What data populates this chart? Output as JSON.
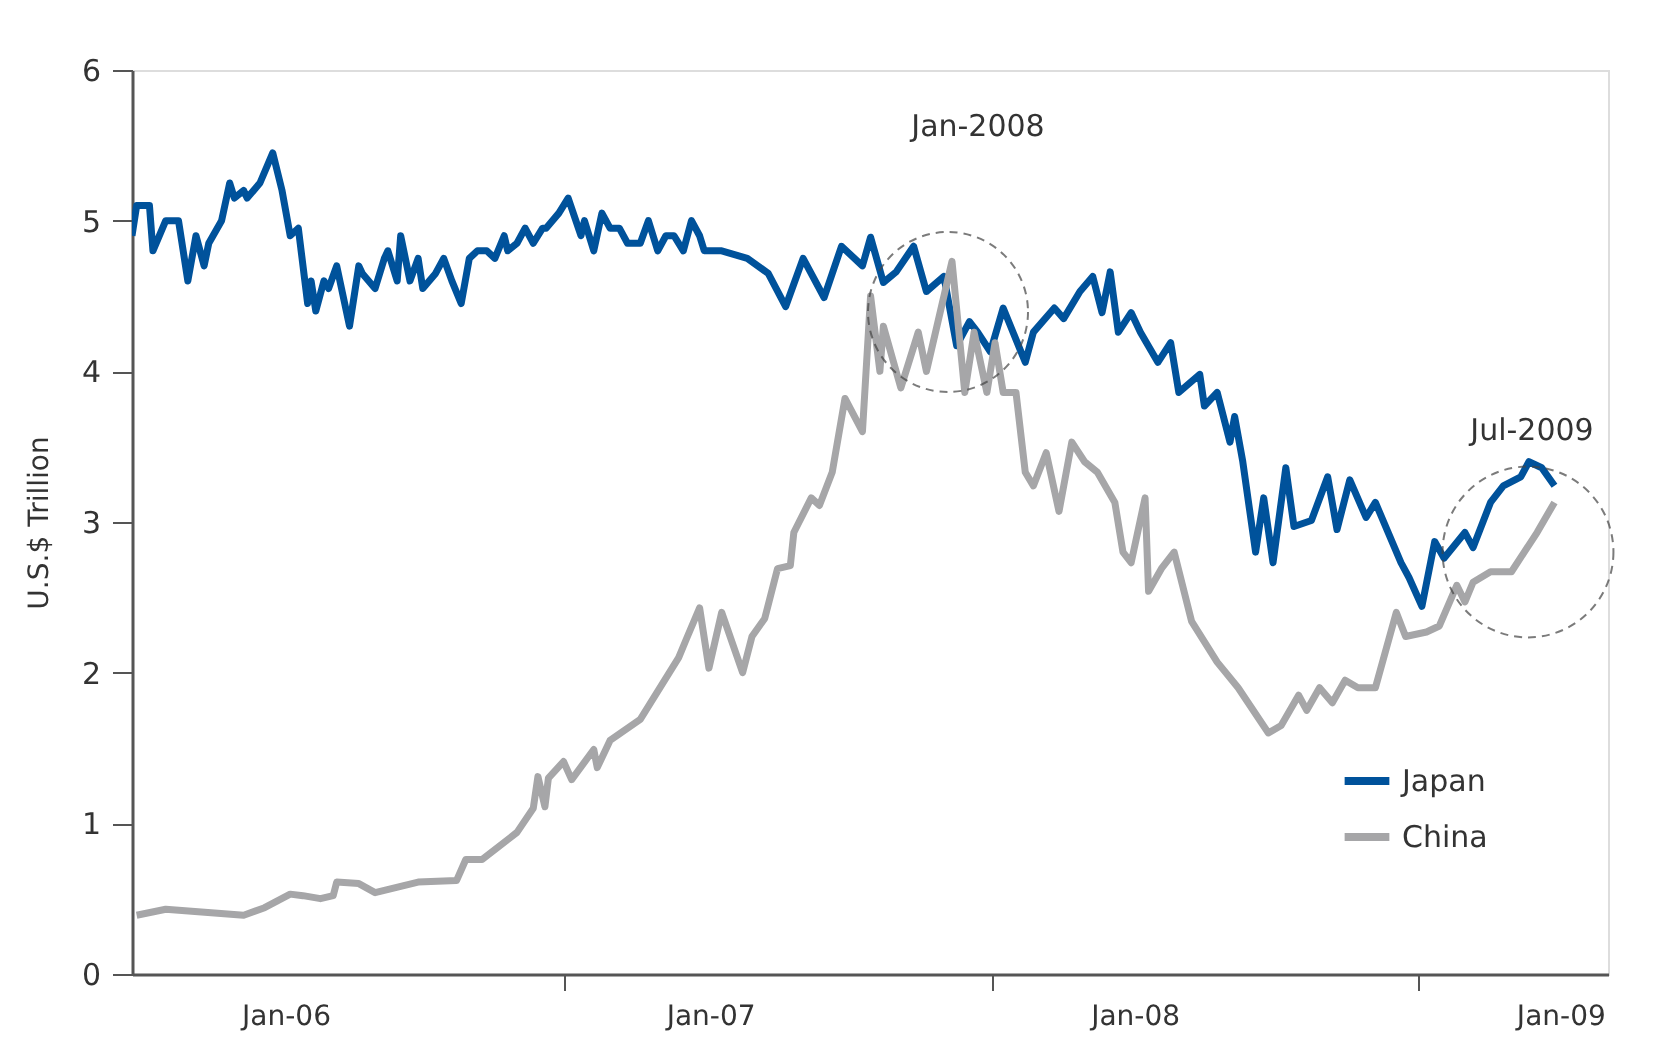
{
  "chart_data": {
    "type": "line",
    "ylabel": "U.S.$ Trillion",
    "xlim": [
      "2005-08-22",
      "2009-02-11"
    ],
    "ylim": [
      0,
      6
    ],
    "yticks": [
      0,
      1,
      2,
      3,
      4,
      5,
      6
    ],
    "xticks": [
      {
        "value": "2006-01-01",
        "label": "Jan-06"
      },
      {
        "value": "2006-08-29",
        "label": null
      },
      {
        "value": "2007-01-01",
        "label": "Jan-07"
      },
      {
        "value": "2007-08-31",
        "label": null
      },
      {
        "value": "2008-01-01",
        "label": "Jan-08"
      },
      {
        "value": "2008-09-01",
        "label": null
      },
      {
        "value": "2009-01-01",
        "label": "Jan-09"
      }
    ],
    "grid": false,
    "legend": "bottom right",
    "line_style": "solid",
    "marker": "none",
    "series": [
      {
        "name": "Japan",
        "color": "#00529b",
        "x": [
          "2005-08-22",
          "2005-08-26",
          "2005-09-06",
          "2005-09-09",
          "2005-09-20",
          "2005-10-01",
          "2005-10-09",
          "2005-10-16",
          "2005-10-23",
          "2005-10-27",
          "2005-11-07",
          "2005-11-14",
          "2005-11-18",
          "2005-11-26",
          "2005-11-29",
          "2005-12-10",
          "2005-12-21",
          "2005-12-29",
          "2006-01-05",
          "2006-01-12",
          "2006-01-20",
          "2006-01-23",
          "2006-01-27",
          "2006-02-03",
          "2006-02-07",
          "2006-02-14",
          "2006-02-25",
          "2006-03-05",
          "2006-03-08",
          "2006-03-19",
          "2006-03-27",
          "2006-03-30",
          "2006-04-07",
          "2006-04-10",
          "2006-04-18",
          "2006-04-25",
          "2006-04-29",
          "2006-05-10",
          "2006-05-17",
          "2006-05-24",
          "2006-06-01",
          "2006-06-08",
          "2006-06-15",
          "2006-06-23",
          "2006-06-30",
          "2006-07-08",
          "2006-07-11",
          "2006-07-19",
          "2006-07-26",
          "2006-08-02",
          "2006-08-10",
          "2006-08-13",
          "2006-08-24",
          "2006-09-01",
          "2006-09-12",
          "2006-09-15",
          "2006-09-23",
          "2006-09-30",
          "2006-10-07",
          "2006-10-15",
          "2006-10-22",
          "2006-11-02",
          "2006-11-09",
          "2006-11-17",
          "2006-11-24",
          "2006-12-01",
          "2006-12-09",
          "2006-12-16",
          "2006-12-23",
          "2006-12-27",
          "2007-01-11",
          "2007-02-02",
          "2007-02-20",
          "2007-03-07",
          "2007-03-22",
          "2007-04-09",
          "2007-04-24",
          "2007-05-12",
          "2007-05-19",
          "2007-05-30",
          "2007-06-10",
          "2007-06-25",
          "2007-07-06",
          "2007-07-21",
          "2007-08-01",
          "2007-08-12",
          "2007-08-19",
          "2007-08-30",
          "2007-09-10",
          "2007-09-29",
          "2007-10-06",
          "2007-10-24",
          "2007-11-01",
          "2007-11-15",
          "2007-11-26",
          "2007-12-04",
          "2007-12-11",
          "2007-12-18",
          "2007-12-29",
          "2008-01-06",
          "2008-01-21",
          "2008-02-01",
          "2008-02-08",
          "2008-02-26",
          "2008-03-01",
          "2008-03-12",
          "2008-03-23",
          "2008-03-27",
          "2008-04-03",
          "2008-04-14",
          "2008-04-21",
          "2008-04-29",
          "2008-05-10",
          "2008-05-17",
          "2008-06-01",
          "2008-06-15",
          "2008-06-23",
          "2008-07-04",
          "2008-07-18",
          "2008-07-26",
          "2008-08-17",
          "2008-08-24",
          "2008-09-04",
          "2008-09-15",
          "2008-09-23",
          "2008-10-11",
          "2008-10-18",
          "2008-11-02",
          "2008-11-13",
          "2008-11-28",
          "2008-12-05",
          "2008-12-16",
          "2008-12-27"
        ],
        "values": [
          4.9,
          5.1,
          5.1,
          4.8,
          5.0,
          5.0,
          4.6,
          4.9,
          4.7,
          4.85,
          5.0,
          5.25,
          5.15,
          5.2,
          5.15,
          5.25,
          5.45,
          5.2,
          4.9,
          4.95,
          4.45,
          4.6,
          4.4,
          4.6,
          4.55,
          4.7,
          4.3,
          4.7,
          4.65,
          4.55,
          4.75,
          4.8,
          4.6,
          4.9,
          4.6,
          4.75,
          4.55,
          4.65,
          4.75,
          4.6,
          4.45,
          4.75,
          4.8,
          4.8,
          4.75,
          4.9,
          4.8,
          4.85,
          4.95,
          4.85,
          4.95,
          4.95,
          5.05,
          5.15,
          4.9,
          5.0,
          4.8,
          5.05,
          4.95,
          4.95,
          4.85,
          4.85,
          5.0,
          4.8,
          4.9,
          4.9,
          4.8,
          5.0,
          4.9,
          4.8,
          4.8,
          4.75,
          4.65,
          4.43,
          4.75,
          4.49,
          4.83,
          4.7,
          4.89,
          4.59,
          4.66,
          4.83,
          4.53,
          4.63,
          4.17,
          4.33,
          4.26,
          4.13,
          4.42,
          4.06,
          4.26,
          4.42,
          4.35,
          4.53,
          4.63,
          4.39,
          4.66,
          4.26,
          4.39,
          4.26,
          4.06,
          4.19,
          3.86,
          3.98,
          3.77,
          3.86,
          3.53,
          3.7,
          3.4,
          2.8,
          3.16,
          2.73,
          3.36,
          2.97,
          3.01,
          3.3,
          2.95,
          3.28,
          3.03,
          3.13,
          2.73,
          2.63,
          2.44,
          2.87,
          2.76,
          2.93,
          2.83,
          3.13,
          3.24,
          3.3,
          3.4,
          3.36,
          3.24
        ]
      },
      {
        "name": "China",
        "color": "#a6a6a8",
        "x": [
          "2005-08-26",
          "2005-09-20",
          "2005-11-26",
          "2005-12-14",
          "2006-01-05",
          "2006-01-16",
          "2006-01-31",
          "2006-02-11",
          "2006-02-14",
          "2006-03-05",
          "2006-03-19",
          "2006-04-25",
          "2006-05-28",
          "2006-06-05",
          "2006-06-19",
          "2006-07-19",
          "2006-08-02",
          "2006-08-06",
          "2006-08-12",
          "2006-08-15",
          "2006-08-28",
          "2006-09-04",
          "2006-09-23",
          "2006-09-26",
          "2006-10-07",
          "2006-11-02",
          "2006-12-05",
          "2006-12-12",
          "2006-12-23",
          "2006-12-31",
          "2007-01-11",
          "2007-01-29",
          "2007-02-06",
          "2007-02-17",
          "2007-02-28",
          "2007-03-11",
          "2007-03-14",
          "2007-03-29",
          "2007-04-05",
          "2007-04-16",
          "2007-04-27",
          "2007-05-12",
          "2007-05-19",
          "2007-05-27",
          "2007-05-30",
          "2007-06-14",
          "2007-06-29",
          "2007-07-06",
          "2007-07-28",
          "2007-08-08",
          "2007-08-16",
          "2007-08-27",
          "2007-09-03",
          "2007-09-10",
          "2007-09-21",
          "2007-09-29",
          "2007-10-06",
          "2007-10-17",
          "2007-10-28",
          "2007-11-08",
          "2007-11-19",
          "2007-11-30",
          "2007-12-15",
          "2007-12-22",
          "2007-12-29",
          "2008-01-10",
          "2008-01-13",
          "2008-01-24",
          "2008-02-04",
          "2008-02-19",
          "2008-03-12",
          "2008-03-30",
          "2008-04-25",
          "2008-05-06",
          "2008-05-21",
          "2008-05-28",
          "2008-06-08",
          "2008-06-19",
          "2008-06-30",
          "2008-07-11",
          "2008-07-26",
          "2008-08-13",
          "2008-08-21",
          "2008-09-08",
          "2008-09-19",
          "2008-10-04",
          "2008-10-11",
          "2008-10-18",
          "2008-11-02",
          "2008-11-20",
          "2008-12-01",
          "2008-12-12",
          "2008-12-27"
        ],
        "values": [
          0.39,
          0.43,
          0.39,
          0.44,
          0.53,
          0.52,
          0.5,
          0.52,
          0.61,
          0.6,
          0.54,
          0.61,
          0.62,
          0.76,
          0.76,
          0.94,
          1.1,
          1.31,
          1.11,
          1.3,
          1.41,
          1.29,
          1.49,
          1.37,
          1.55,
          1.69,
          2.1,
          2.23,
          2.43,
          2.03,
          2.4,
          2.0,
          2.24,
          2.36,
          2.69,
          2.71,
          2.93,
          3.16,
          3.11,
          3.33,
          3.82,
          3.6,
          4.5,
          4.0,
          4.3,
          3.89,
          4.26,
          4.0,
          4.73,
          3.86,
          4.26,
          3.86,
          4.19,
          3.86,
          3.86,
          3.33,
          3.24,
          3.46,
          3.07,
          3.53,
          3.4,
          3.33,
          3.13,
          2.8,
          2.73,
          3.16,
          2.54,
          2.69,
          2.8,
          2.34,
          2.07,
          1.9,
          1.6,
          1.65,
          1.85,
          1.75,
          1.9,
          1.8,
          1.95,
          1.9,
          1.9,
          2.4,
          2.24,
          2.27,
          2.31,
          2.58,
          2.47,
          2.6,
          2.67,
          2.67,
          2.8,
          2.93,
          3.13
        ]
      }
    ],
    "annotations": [
      "Jan-2008",
      "Jul-2009"
    ]
  }
}
